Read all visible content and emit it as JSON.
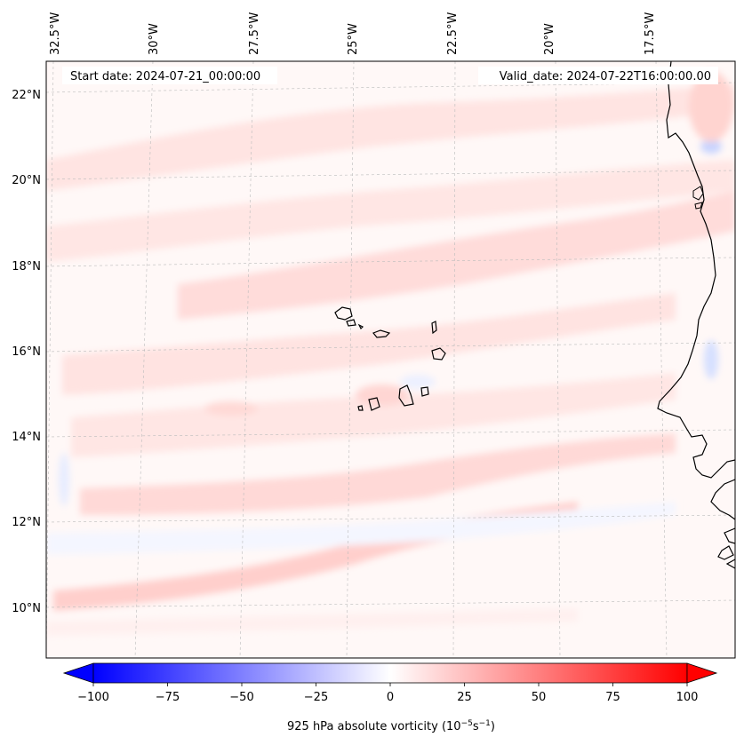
{
  "map": {
    "start_label": "Start date: 2024-07-21_00:00:00",
    "valid_label": "Valid_date: 2024-07-22T16:00:00.00",
    "lon_labels": [
      "32.5°W",
      "30°W",
      "27.5°W",
      "25°W",
      "22.5°W",
      "20°W",
      "17.5°W"
    ],
    "lat_labels": [
      "22°N",
      "20°N",
      "18°N",
      "16°N",
      "14°N",
      "12°N",
      "10°N"
    ],
    "gridlines": true,
    "colors": {
      "coast": "#000000",
      "field_low": "#0000ff",
      "field_high": "#ff0000",
      "grid": "#bbbbbb"
    }
  },
  "colorbar": {
    "label_main": "925 hPa absolute vorticity (10",
    "label_sup1": "−5",
    "label_mid": "s",
    "label_sup2": "−1",
    "label_end": ")",
    "ticks": [
      "−100",
      "−75",
      "−50",
      "−25",
      "0",
      "25",
      "50",
      "75",
      "100"
    ],
    "range": [
      -100,
      100
    ],
    "extend": "both"
  }
}
